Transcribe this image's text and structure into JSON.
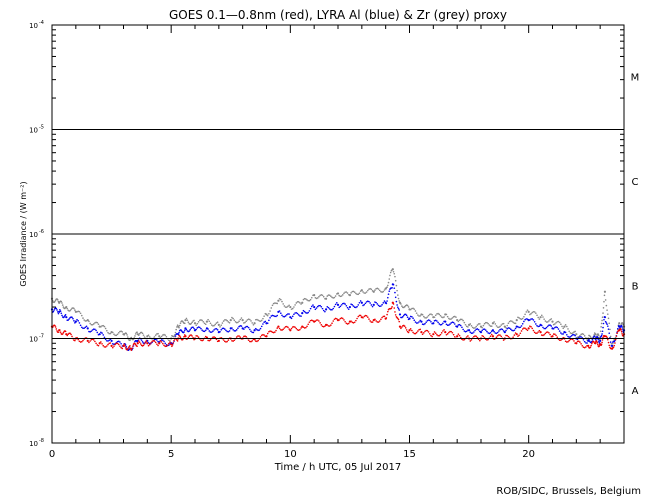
{
  "chart_data": {
    "type": "scatter",
    "title": "GOES 0.1—0.8nm (red), LYRA Al (blue) & Zr (grey) proxy",
    "xlabel": "Time / h UTC, 05 Jul 2017",
    "ylabel": "GOES Irradiance / (W m⁻²)",
    "credit": "ROB/SIDC, Brussels, Belgium",
    "x_range": [
      0,
      24
    ],
    "x_ticks": [
      0,
      5,
      10,
      15,
      20
    ],
    "x_tick_labels": [
      "0",
      "5",
      "10",
      "15",
      "20"
    ],
    "y_scale": "log",
    "y_range": [
      1e-08,
      0.0001
    ],
    "y_ticks": [
      1e-08,
      1e-07,
      1e-06,
      1e-05,
      0.0001
    ],
    "y_tick_labels": [
      {
        "base": "10",
        "exp": "-8"
      },
      {
        "base": "10",
        "exp": "-7"
      },
      {
        "base": "10",
        "exp": "-6"
      },
      {
        "base": "10",
        "exp": "-5"
      },
      {
        "base": "10",
        "exp": "-4"
      }
    ],
    "reference_lines": [
      1e-07,
      1e-06,
      1e-05
    ],
    "flare_classes": [
      {
        "label": "A",
        "value": 3.2e-08
      },
      {
        "label": "B",
        "value": 3.2e-07
      },
      {
        "label": "C",
        "value": 3.2e-06
      },
      {
        "label": "M",
        "value": 3.2e-05
      }
    ],
    "series": [
      {
        "color": "#888888",
        "x": [
          0,
          0.3,
          0.6,
          1.0,
          1.5,
          2.0,
          2.5,
          3.0,
          3.3,
          3.6,
          4.0,
          4.5,
          5.0,
          5.3,
          5.6,
          6.0,
          6.5,
          7.0,
          7.5,
          8.0,
          8.5,
          9.0,
          9.5,
          10.0,
          10.5,
          11.0,
          11.5,
          12.0,
          12.5,
          13.0,
          13.5,
          14.0,
          14.3,
          14.6,
          15.0,
          15.5,
          16.0,
          16.5,
          17.0,
          17.5,
          18.0,
          18.5,
          19.0,
          19.5,
          20.0,
          20.5,
          21.0,
          21.5,
          22.0,
          22.5,
          22.8,
          23.0,
          23.2,
          23.5,
          23.8,
          24.0
        ],
        "y": [
          2.4e-07,
          2.2e-07,
          2e-07,
          1.8e-07,
          1.5e-07,
          1.3e-07,
          1.15e-07,
          1.1e-07,
          1e-07,
          1.1e-07,
          1.05e-07,
          1.05e-07,
          1e-07,
          1.3e-07,
          1.5e-07,
          1.4e-07,
          1.45e-07,
          1.35e-07,
          1.5e-07,
          1.5e-07,
          1.4e-07,
          1.7e-07,
          2.3e-07,
          2e-07,
          2.2e-07,
          2.6e-07,
          2.4e-07,
          2.7e-07,
          2.6e-07,
          2.9e-07,
          2.8e-07,
          3e-07,
          4.6e-07,
          2.2e-07,
          1.9e-07,
          1.7e-07,
          1.6e-07,
          1.7e-07,
          1.5e-07,
          1.35e-07,
          1.3e-07,
          1.4e-07,
          1.3e-07,
          1.5e-07,
          1.8e-07,
          1.6e-07,
          1.45e-07,
          1.3e-07,
          1.1e-07,
          1e-07,
          1.1e-07,
          1e-07,
          2.8e-07,
          8e-08,
          1.4e-07,
          1.3e-07
        ]
      },
      {
        "color": "#0000ee",
        "x": [
          0,
          0.3,
          0.6,
          1.0,
          1.5,
          2.0,
          2.5,
          3.0,
          3.3,
          3.6,
          4.0,
          4.5,
          5.0,
          5.3,
          5.6,
          6.0,
          6.5,
          7.0,
          7.5,
          8.0,
          8.5,
          9.0,
          9.5,
          10.0,
          10.5,
          11.0,
          11.5,
          12.0,
          12.5,
          13.0,
          13.5,
          14.0,
          14.3,
          14.6,
          15.0,
          15.5,
          16.0,
          16.5,
          17.0,
          17.5,
          18.0,
          18.5,
          19.0,
          19.5,
          20.0,
          20.5,
          21.0,
          21.5,
          22.0,
          22.5,
          22.8,
          23.0,
          23.2,
          23.5,
          23.8,
          24.0
        ],
        "y": [
          1.9e-07,
          1.8e-07,
          1.6e-07,
          1.45e-07,
          1.25e-07,
          1.1e-07,
          9.5e-08,
          8.5e-08,
          8e-08,
          9.5e-08,
          9.5e-08,
          9.2e-08,
          9e-08,
          1.1e-07,
          1.25e-07,
          1.2e-07,
          1.25e-07,
          1.15e-07,
          1.25e-07,
          1.25e-07,
          1.2e-07,
          1.4e-07,
          1.8e-07,
          1.6e-07,
          1.75e-07,
          2e-07,
          1.9e-07,
          2.1e-07,
          2e-07,
          2.2e-07,
          2.1e-07,
          2.2e-07,
          3.3e-07,
          1.7e-07,
          1.55e-07,
          1.45e-07,
          1.4e-07,
          1.45e-07,
          1.3e-07,
          1.2e-07,
          1.15e-07,
          1.2e-07,
          1.15e-07,
          1.3e-07,
          1.5e-07,
          1.35e-07,
          1.25e-07,
          1.15e-07,
          1e-07,
          9.5e-08,
          1e-07,
          9.5e-08,
          1.6e-07,
          8.5e-08,
          1.3e-07,
          1.2e-07
        ]
      },
      {
        "color": "#ee0000",
        "x": [
          0,
          0.3,
          0.6,
          1.0,
          1.5,
          2.0,
          2.5,
          3.0,
          3.3,
          3.6,
          4.0,
          4.5,
          5.0,
          5.3,
          5.6,
          6.0,
          6.5,
          7.0,
          7.5,
          8.0,
          8.5,
          9.0,
          9.5,
          10.0,
          10.5,
          11.0,
          11.5,
          12.0,
          12.5,
          13.0,
          13.5,
          14.0,
          14.3,
          14.6,
          15.0,
          15.5,
          16.0,
          16.5,
          17.0,
          17.5,
          18.0,
          18.5,
          19.0,
          19.5,
          20.0,
          20.5,
          21.0,
          21.5,
          22.0,
          22.5,
          22.8,
          23.0,
          23.2,
          23.5,
          23.8,
          24.0
        ],
        "y": [
          1.3e-07,
          1.2e-07,
          1.1e-07,
          1e-07,
          9.5e-08,
          9e-08,
          8.5e-08,
          8.5e-08,
          8e-08,
          9e-08,
          9e-08,
          9e-08,
          8.8e-08,
          1e-07,
          1.05e-07,
          1e-07,
          1.02e-07,
          9.5e-08,
          1e-07,
          1e-07,
          9.8e-08,
          1.05e-07,
          1.3e-07,
          1.2e-07,
          1.3e-07,
          1.45e-07,
          1.35e-07,
          1.5e-07,
          1.45e-07,
          1.6e-07,
          1.5e-07,
          1.55e-07,
          2.2e-07,
          1.3e-07,
          1.2e-07,
          1.15e-07,
          1.1e-07,
          1.15e-07,
          1.05e-07,
          1e-07,
          1e-07,
          1.05e-07,
          1e-07,
          1.1e-07,
          1.25e-07,
          1.15e-07,
          1.05e-07,
          1e-07,
          9e-08,
          8.5e-08,
          9e-08,
          8.8e-08,
          1.05e-07,
          8e-08,
          1.2e-07,
          1.1e-07
        ]
      }
    ]
  }
}
